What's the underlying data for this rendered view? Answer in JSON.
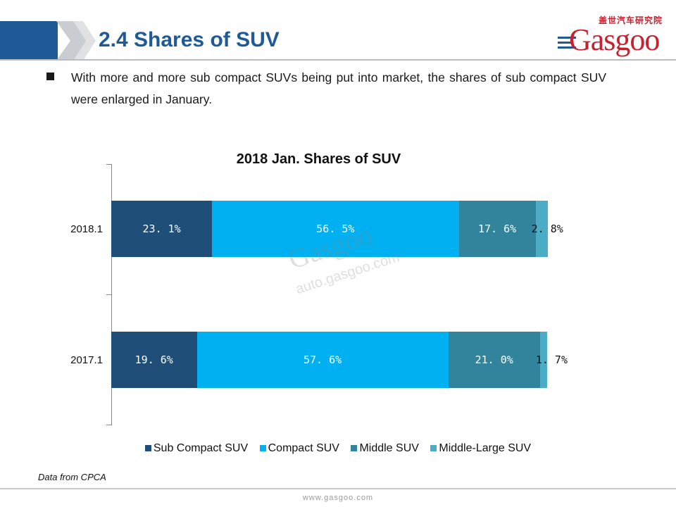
{
  "header": {
    "title": "2.4 Shares of SUV",
    "logo_cn": "盖世汽车研究院",
    "logo_word": "Gasgoo"
  },
  "body": {
    "bullet_text": "With more and more sub compact SUVs being put into market, the shares of sub compact SUV were enlarged in January."
  },
  "watermark": {
    "word": "Gasgoo",
    "url": "auto.gasgoo.com"
  },
  "chart_data": {
    "type": "bar",
    "orientation": "horizontal",
    "stacked": "100%",
    "title": "2018 Jan. Shares of SUV",
    "categories": [
      "2018.1",
      "2017.1"
    ],
    "series": [
      {
        "name": "Sub Compact SUV",
        "color": "#1f4e79",
        "label_color": "#ffffff",
        "values": [
          23.1,
          19.6
        ],
        "labels": [
          "23. 1%",
          "19. 6%"
        ]
      },
      {
        "name": "Compact SUV",
        "color": "#00b0f0",
        "label_color": "#ffffff",
        "values": [
          56.5,
          57.6
        ],
        "labels": [
          "56. 5%",
          "57. 6%"
        ]
      },
      {
        "name": "Middle SUV",
        "color": "#31849b",
        "label_color": "#ffffff",
        "values": [
          17.6,
          21.0
        ],
        "labels": [
          "17. 6%",
          "21. 0%"
        ]
      },
      {
        "name": "Middle-Large SUV",
        "color": "#4bacc6",
        "label_color": "#111111",
        "values": [
          2.8,
          1.7
        ],
        "labels": [
          "2. 8%",
          "1. 7%"
        ]
      }
    ],
    "xlim": [
      0,
      100
    ],
    "grid": false,
    "legend_position": "bottom"
  },
  "source_note": "Data from CPCA",
  "footer": {
    "url": "www.gasgoo.com"
  }
}
